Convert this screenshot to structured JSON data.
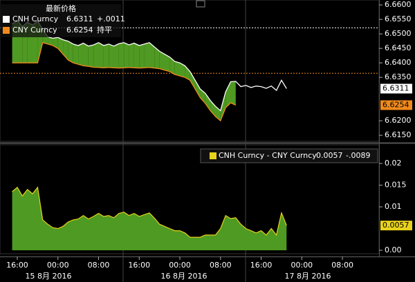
{
  "chart_data": [
    {
      "type": "line",
      "legend_title": "最新价格",
      "fill_between": true,
      "fill_color": "#4f9a22",
      "x": [
        15,
        16,
        17,
        18,
        19,
        20,
        21,
        22,
        23,
        24,
        25,
        26,
        27,
        28,
        29,
        30,
        31,
        32,
        33,
        34,
        35,
        36,
        37,
        38,
        39,
        40,
        41,
        42,
        43,
        44,
        45,
        46,
        47,
        48,
        49,
        50,
        51,
        52,
        53,
        54,
        55,
        56,
        57,
        58,
        59,
        60,
        61,
        62,
        63,
        64,
        65,
        66,
        67,
        68,
        69
      ],
      "xlim": [
        12.6,
        87.2
      ],
      "ylim": [
        6.6129,
        6.6617
      ],
      "yticks": [
        {
          "value": 6.66,
          "label": "6.6600"
        },
        {
          "value": 6.655,
          "label": "6.6550"
        },
        {
          "value": 6.65,
          "label": "6.6500"
        },
        {
          "value": 6.645,
          "label": "6.6450"
        },
        {
          "value": 6.64,
          "label": "6.6400"
        },
        {
          "value": 6.635,
          "label": "6.6350"
        },
        {
          "value": 6.62,
          "label": "6.6200"
        },
        {
          "value": 6.615,
          "label": "6.6150"
        }
      ],
      "hlines": [
        {
          "value": 6.6521,
          "color": "#ffffff"
        },
        {
          "value": 6.6364,
          "color": "#f08a1c"
        }
      ],
      "series": [
        {
          "name": "CNH Curncy",
          "color": "#ffffff",
          "last": "6.6311",
          "change": "+.0011",
          "values": [
            6.6535,
            6.6545,
            6.6525,
            6.654,
            6.653,
            6.6545,
            6.6515,
            6.649,
            6.6485,
            6.6488,
            6.648,
            6.6475,
            6.6465,
            6.646,
            6.6468,
            6.6458,
            6.6462,
            6.647,
            6.646,
            6.6465,
            6.6458,
            6.6466,
            6.647,
            6.6462,
            6.6468,
            6.646,
            6.6465,
            6.647,
            6.6455,
            6.644,
            6.643,
            6.642,
            6.6405,
            6.64,
            6.639,
            6.637,
            6.634,
            6.631,
            6.6295,
            6.627,
            6.625,
            6.6235,
            6.63,
            6.6335,
            6.6336,
            6.6318,
            6.6322,
            6.6315,
            6.632,
            6.6318,
            6.6312,
            6.632,
            6.6305,
            6.634,
            6.6311
          ]
        },
        {
          "name": "CNY Curncy",
          "color": "#f08a1c",
          "last": "6.6254",
          "change": "持平",
          "values": [
            6.64,
            6.64,
            6.64,
            6.64,
            6.64,
            6.64,
            6.647,
            6.6465,
            6.646,
            6.645,
            6.643,
            6.641,
            6.64,
            6.6395,
            6.639,
            6.6388,
            6.6385,
            6.6384,
            6.6383,
            6.6384,
            6.6383,
            6.6382,
            6.6383,
            6.6384,
            6.6383,
            6.6382,
            6.6383,
            6.6384,
            6.6382,
            6.638,
            6.6375,
            6.637,
            6.636,
            6.6355,
            6.635,
            6.634,
            6.631,
            6.628,
            6.626,
            6.6235,
            6.6215,
            6.62,
            6.6245,
            6.6262,
            6.6254,
            null,
            null,
            null,
            null,
            null,
            null,
            null,
            null,
            null,
            null
          ]
        }
      ]
    },
    {
      "type": "area",
      "fill_color": "#4f9a22",
      "x": [
        15,
        16,
        17,
        18,
        19,
        20,
        21,
        22,
        23,
        24,
        25,
        26,
        27,
        28,
        29,
        30,
        31,
        32,
        33,
        34,
        35,
        36,
        37,
        38,
        39,
        40,
        41,
        42,
        43,
        44,
        45,
        46,
        47,
        48,
        49,
        50,
        51,
        52,
        53,
        54,
        55,
        56,
        57,
        58,
        59,
        60,
        61,
        62,
        63,
        64,
        65,
        66,
        67,
        68,
        69
      ],
      "xlim": [
        12.6,
        87.2
      ],
      "ylim": [
        -0.0008,
        0.0243
      ],
      "yticks": [
        0.02,
        0.015,
        0.01,
        {
          "value": 0,
          "label": "0.00"
        }
      ],
      "xticks": [
        {
          "value": 16,
          "label": "16:00"
        },
        {
          "value": 24,
          "label": "00:00"
        },
        {
          "value": 32,
          "label": "08:00"
        },
        {
          "value": 40,
          "label": "16:00"
        },
        {
          "value": 48,
          "label": "00:00"
        },
        {
          "value": 56,
          "label": "08:00"
        },
        {
          "value": 64,
          "label": "16:00"
        },
        {
          "value": 72,
          "label": "00:00"
        },
        {
          "value": 80,
          "label": "08:00"
        }
      ],
      "date_labels": [
        "15 8月 2016",
        "16 8月 2016",
        "17 8月 2016"
      ],
      "series": [
        {
          "name": "CNH Curncy - CNY Curncy",
          "color": "#e8d21c",
          "last": "0.0057",
          "change": "-.0089",
          "values": [
            0.0135,
            0.0145,
            0.0125,
            0.014,
            0.013,
            0.0145,
            0.007,
            0.006,
            0.0052,
            0.005,
            0.0055,
            0.0065,
            0.007,
            0.0072,
            0.008,
            0.0072,
            0.0078,
            0.0085,
            0.0078,
            0.008,
            0.0075,
            0.0085,
            0.0088,
            0.008,
            0.0085,
            0.0078,
            0.0082,
            0.0086,
            0.0074,
            0.006,
            0.0055,
            0.005,
            0.0045,
            0.0045,
            0.004,
            0.003,
            0.003,
            0.003,
            0.0035,
            0.0035,
            0.0035,
            0.005,
            0.008,
            0.0073,
            0.0075,
            0.006,
            0.005,
            0.0045,
            0.004,
            0.0045,
            0.0035,
            0.005,
            0.0035,
            0.0086,
            0.0057
          ]
        }
      ]
    }
  ]
}
